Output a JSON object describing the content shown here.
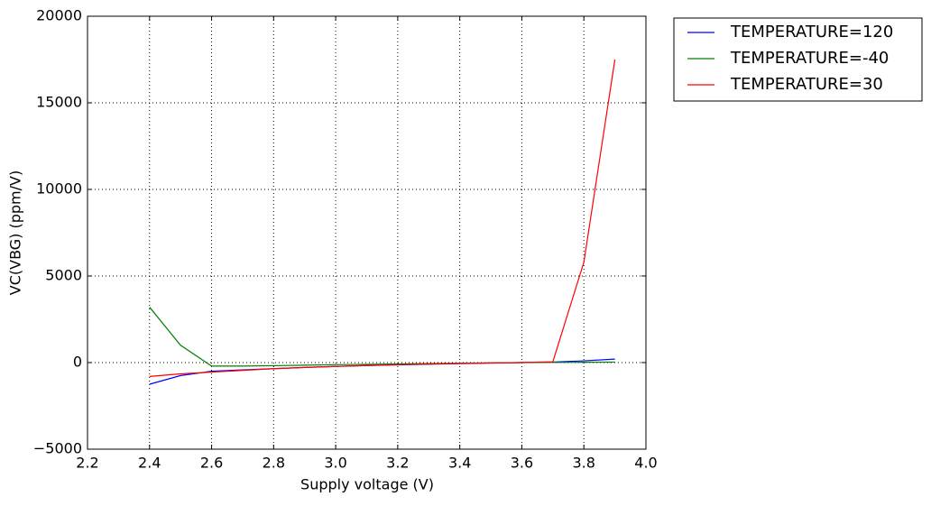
{
  "chart_data": {
    "type": "line",
    "x_label": "Supply voltage (V)",
    "y_label": "VC(VBG) (ppm/V)",
    "x": [
      2.4,
      2.5,
      2.6,
      2.7,
      2.8,
      2.9,
      3.0,
      3.1,
      3.2,
      3.3,
      3.4,
      3.5,
      3.6,
      3.7,
      3.8,
      3.9
    ],
    "series": [
      {
        "name": "TEMPERATURE=120",
        "color": "#0000ff",
        "values": [
          -1250,
          -750,
          -500,
          -420,
          -350,
          -280,
          -220,
          -170,
          -130,
          -90,
          -60,
          -30,
          0,
          30,
          100,
          200
        ]
      },
      {
        "name": "TEMPERATURE=-40",
        "color": "#008000",
        "values": [
          3200,
          1000,
          -200,
          -200,
          -180,
          -150,
          -120,
          -100,
          -80,
          -60,
          -40,
          -20,
          0,
          10,
          20,
          30
        ]
      },
      {
        "name": "TEMPERATURE=30",
        "color": "#ff0000",
        "values": [
          -800,
          -650,
          -550,
          -450,
          -350,
          -280,
          -220,
          -170,
          -120,
          -80,
          -50,
          -20,
          0,
          50,
          5800,
          17500
        ]
      }
    ],
    "xlim": [
      2.2,
      4.0
    ],
    "xticks": [
      2.2,
      2.4,
      2.6,
      2.8,
      {
        "value": 3.0,
        "label": "3.0"
      },
      3.2,
      3.4,
      3.6,
      3.8,
      {
        "value": 4.0,
        "label": "4.0"
      }
    ],
    "ylim": [
      -5000,
      20000
    ],
    "yticks": [
      {
        "value": -5000,
        "label": "−5000"
      },
      0,
      5000,
      10000,
      15000,
      20000
    ],
    "grid": true,
    "legend": "outside-upper-right"
  }
}
